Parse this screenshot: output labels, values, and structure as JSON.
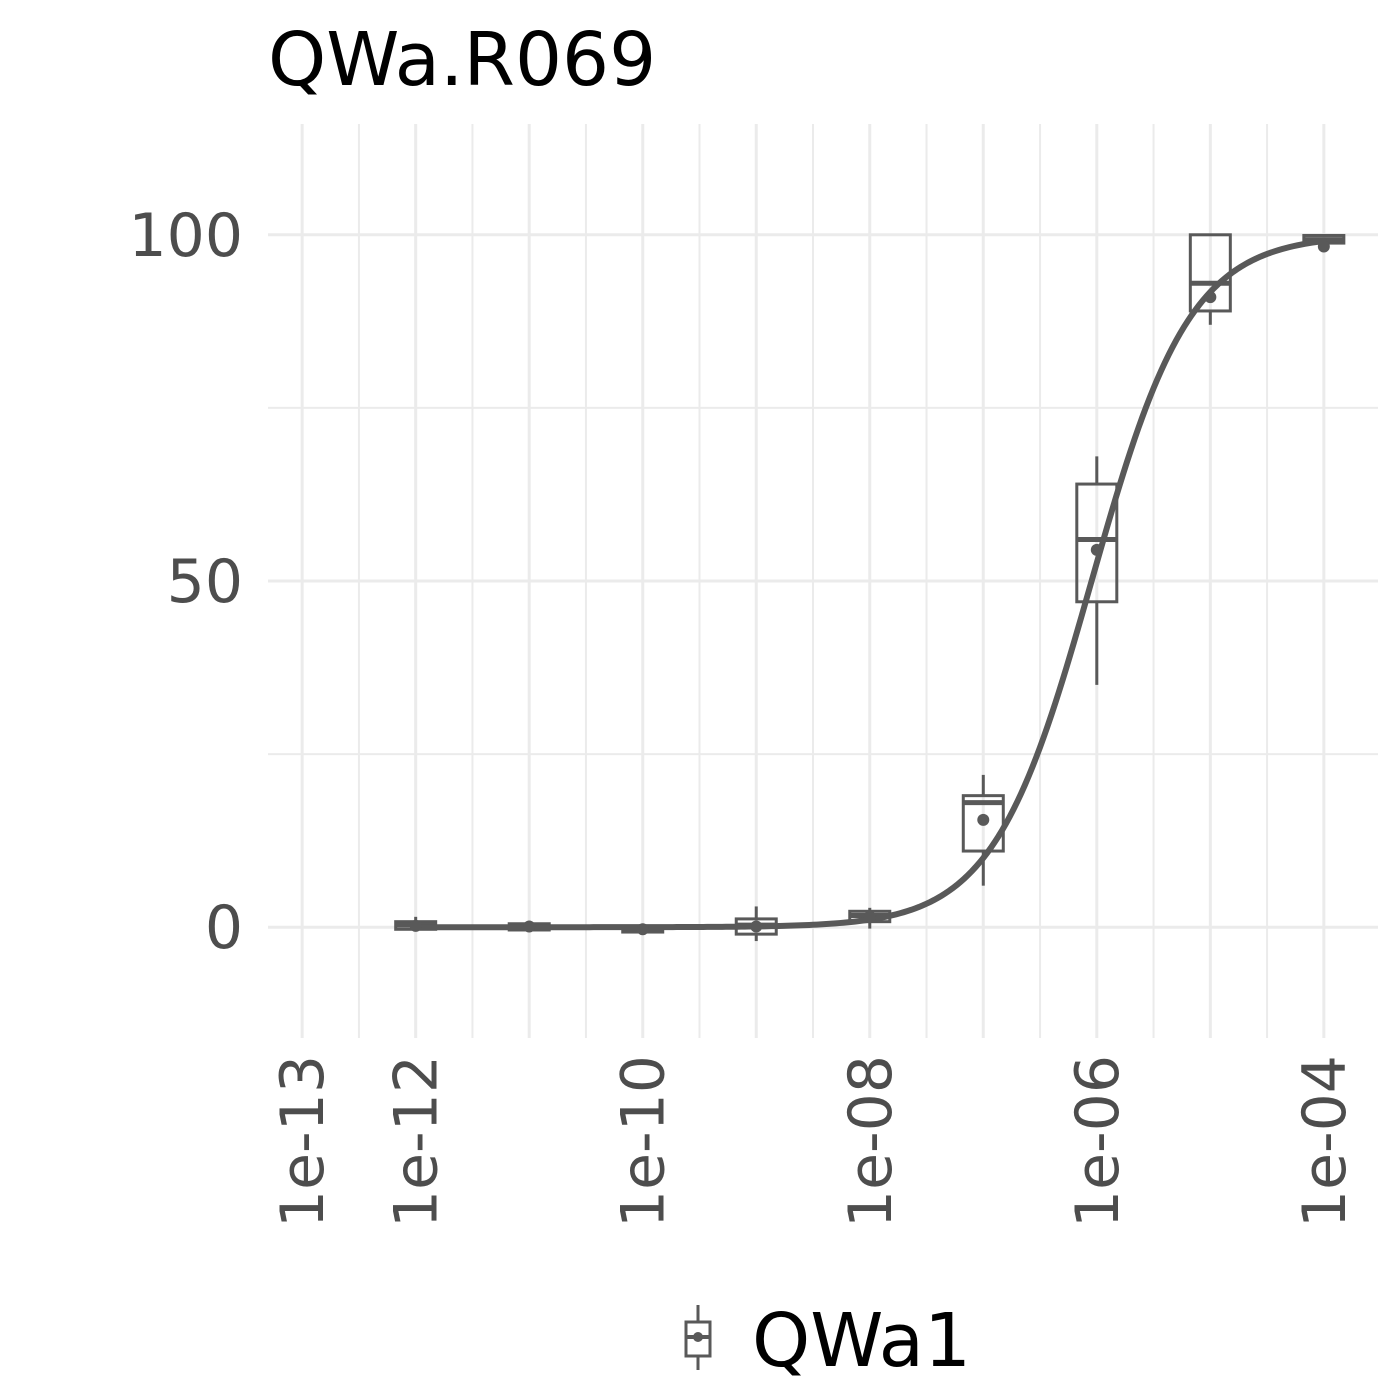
{
  "chart_data": {
    "type": "line",
    "title": "QWa.R069",
    "xlabel": "",
    "ylabel": "",
    "x_scale": "log10",
    "xlim": [
      5e-14,
      0.0003
    ],
    "ylim": [
      -16,
      116
    ],
    "grid": true,
    "legend_position": "bottom",
    "x_tick_labels": [
      "1e-13",
      "1e-12",
      "1e-10",
      "1e-08",
      "1e-06",
      "1e-04"
    ],
    "x_tick_values": [
      1e-13,
      1e-12,
      1e-10,
      1e-08,
      1e-06,
      0.0001
    ],
    "y_tick_labels": [
      "0",
      "50",
      "100"
    ],
    "y_tick_values": [
      0,
      50,
      100
    ],
    "series": [
      {
        "name": "QWa1",
        "color": "#595959",
        "boxes": [
          {
            "x": 1e-12,
            "q1": -0.3,
            "median": 0.3,
            "q3": 0.8,
            "whisker_low": -0.5,
            "whisker_high": 1.5,
            "mean": 0.2
          },
          {
            "x": 1e-11,
            "q1": -0.4,
            "median": 0.1,
            "q3": 0.5,
            "whisker_low": -0.4,
            "whisker_high": 0.5,
            "mean": 0.1
          },
          {
            "x": 1e-10,
            "q1": -0.7,
            "median": -0.3,
            "q3": 0.0,
            "whisker_low": -0.7,
            "whisker_high": 0.0,
            "mean": -0.3
          },
          {
            "x": 1e-09,
            "q1": -1.0,
            "median": 0.3,
            "q3": 1.2,
            "whisker_low": -2.0,
            "whisker_high": 3.0,
            "mean": 0.1
          },
          {
            "x": 1e-08,
            "q1": 0.8,
            "median": 1.7,
            "q3": 2.3,
            "whisker_low": -0.2,
            "whisker_high": 2.8,
            "mean": 1.5
          },
          {
            "x": 1e-07,
            "q1": 11.0,
            "median": 18.0,
            "q3": 19.0,
            "whisker_low": 6.0,
            "whisker_high": 22.0,
            "mean": 15.5
          },
          {
            "x": 1e-06,
            "q1": 47.0,
            "median": 56.0,
            "q3": 64.0,
            "whisker_low": 35.0,
            "whisker_high": 68.0,
            "mean": 54.5
          },
          {
            "x": 1e-05,
            "q1": 89.0,
            "median": 93.0,
            "q3": 100.0,
            "whisker_low": 87.0,
            "whisker_high": 100.0,
            "mean": 91.0
          },
          {
            "x": 0.0001,
            "q1": 98.8,
            "median": 99.3,
            "q3": 99.9,
            "whisker_low": 98.5,
            "whisker_high": 100.0,
            "mean": 98.3
          }
        ],
        "fit_curve": {
          "model": "4PL",
          "bottom": 0,
          "top": 100,
          "ec50": 9e-07,
          "hill": 1.0,
          "x_range": [
            1e-12,
            0.0001
          ]
        }
      }
    ]
  }
}
